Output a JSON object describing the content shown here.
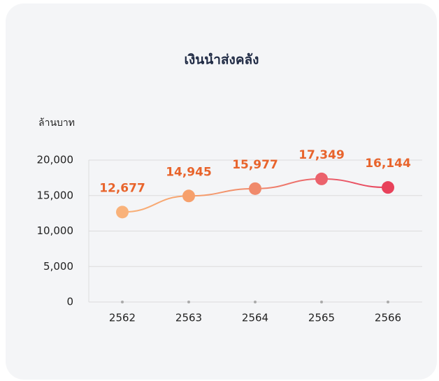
{
  "chart_data": {
    "type": "line",
    "title": "เงินนำส่งคลัง",
    "y_axis_label": "ล้านบาท",
    "categories": [
      "2562",
      "2563",
      "2564",
      "2565",
      "2566"
    ],
    "series": [
      {
        "values": [
          12677,
          14945,
          15977,
          17349,
          16144
        ],
        "value_labels": [
          "12,677",
          "14,945",
          "15,977",
          "17,349",
          "16,144"
        ],
        "point_colors": [
          "#f9b27a",
          "#f6a06c",
          "#f08a6c",
          "#eb626c",
          "#e8425b"
        ]
      }
    ],
    "ylim": [
      0,
      20000
    ],
    "yticks": [
      0,
      {
        "value": 5000,
        "label": "5,000"
      },
      {
        "value": 10000,
        "label": "10,000"
      },
      {
        "value": 15000,
        "label": "15,000"
      },
      {
        "value": 20000,
        "label": "20,000"
      }
    ],
    "grid": true,
    "label_color": "#e8642c"
  }
}
